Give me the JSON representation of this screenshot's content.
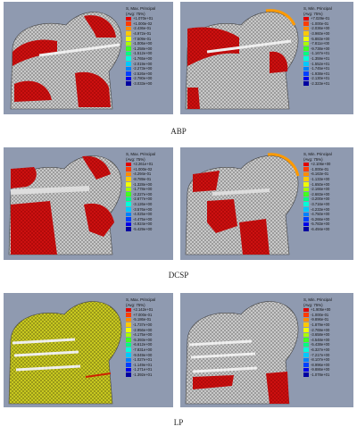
{
  "rows": [
    {
      "label": "ABP",
      "panels": [
        {
          "legend_title": "S, Max. Principal",
          "legend_subtitle": "(Avg: 75%)",
          "values": [
            "+1.070e+01",
            "+1.000e-02",
            "-2.436e-01",
            "-4.972e-01",
            "-7.509e-01",
            "-1.005e+00",
            "-1.258e+00",
            "-1.512e+00",
            "-1.765e+00",
            "-2.019e+00",
            "-2.273e+00",
            "-2.526e+00",
            "-2.780e+00",
            "-3.033e+00"
          ]
        },
        {
          "legend_title": "S, Min. Principal",
          "legend_subtitle": "(Avg: 75%)",
          "values": [
            "+7.029e-01",
            "-1.000e-01",
            "-2.036e+00",
            "-3.960e+00",
            "-5.883e+00",
            "-7.811e+00",
            "-9.738e+00",
            "-1.167e+01",
            "-1.359e+01",
            "-1.552e+01",
            "-1.745e+01",
            "-1.938e+01",
            "-2.130e+01",
            "-2.323e+01"
          ]
        }
      ]
    },
    {
      "label": "DCSP",
      "panels": [
        {
          "legend_title": "S, Max. Principal",
          "legend_subtitle": "(Avg: 75%)",
          "values": [
            "+2.261e+01",
            "+1.000e-02",
            "-4.294e-01",
            "-8.789e-01",
            "-1.328e+00",
            "-1.778e+00",
            "-2.227e+00",
            "-2.677e+00",
            "-3.126e+00",
            "-3.576e+00",
            "-4.025e+00",
            "-4.475e+00",
            "-4.924e+00",
            "-5.429e+00"
          ]
        },
        {
          "legend_title": "S, Min. Principal",
          "legend_subtitle": "(Avg: 75%)",
          "values": [
            "+2.106e+00",
            "-1.000e-01",
            "-6.163e-01",
            "-1.133e+00",
            "-1.650e+00",
            "-2.166e+00",
            "-2.683e+00",
            "-3.200e+00",
            "-3.716e+00",
            "-4.233e+00",
            "-4.750e+00",
            "-5.266e+00",
            "-5.783e+00",
            "-6.494e+00"
          ]
        }
      ]
    },
    {
      "label": "LP",
      "panels": [
        {
          "legend_title": "S, Max. Principal",
          "legend_subtitle": "(Avg: 75%)",
          "values": [
            "+2.142e+01",
            "+7.000e-01",
            "-5.186e-01",
            "-1.737e+00",
            "-2.956e+00",
            "-4.175e+00",
            "-5.393e+00",
            "-6.612e+00",
            "-7.831e+00",
            "-9.049e+00",
            "-1.027e+01",
            "-1.149e+01",
            "-1.271e+01",
            "-1.392e+01"
          ]
        },
        {
          "legend_title": "S, Min. Principal",
          "legend_subtitle": "(Avg: 75%)",
          "values": [
            "+1.905e+00",
            "-1.000e-01",
            "-9.896e-01",
            "-1.879e+00",
            "-2.769e+00",
            "-3.658e+00",
            "-4.548e+00",
            "-5.438e+00",
            "-6.327e+00",
            "-7.217e+00",
            "-8.107e+00",
            "-8.996e+00",
            "-9.886e+00",
            "-1.078e+01"
          ]
        }
      ]
    }
  ],
  "contour_colors": [
    "#e00000",
    "#ff3c00",
    "#ff8c00",
    "#ffc800",
    "#f0ff00",
    "#a8ff00",
    "#40ff20",
    "#00ff80",
    "#00ffd8",
    "#00c8ff",
    "#0080ff",
    "#0040ff",
    "#0000e8",
    "#0000a0"
  ]
}
